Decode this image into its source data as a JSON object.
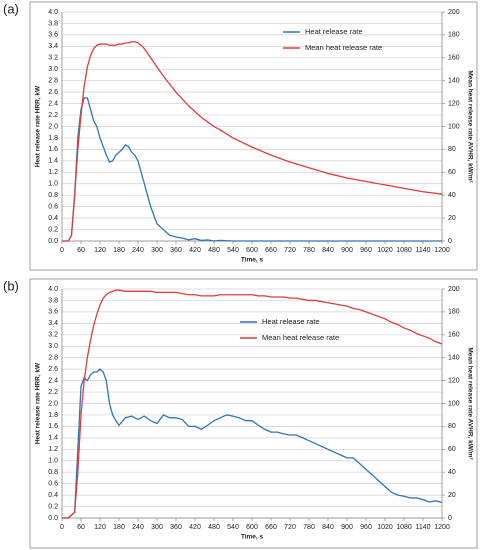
{
  "chart_data": [
    {
      "type": "line",
      "title": "(a)",
      "x_label": "Time, s",
      "y_label": "Heat release rate HRR, kW",
      "y2_label": "Mean heat release rate AVHR, kW/m²",
      "x": [
        0,
        20,
        30,
        40,
        50,
        60,
        70,
        80,
        90,
        100,
        110,
        120,
        130,
        140,
        150,
        160,
        170,
        180,
        190,
        200,
        210,
        220,
        230,
        240,
        250,
        260,
        270,
        280,
        290,
        300,
        320,
        340,
        360,
        380,
        400,
        420,
        440,
        460,
        480,
        500,
        540,
        600,
        660,
        720,
        780,
        840,
        900,
        960,
        1020,
        1080,
        1140,
        1200
      ],
      "series": [
        {
          "name": "Heat release rate",
          "color": "#2e75b6",
          "values": [
            0,
            0,
            0.1,
            0.8,
            1.8,
            2.3,
            2.5,
            2.5,
            2.3,
            2.1,
            2.0,
            1.8,
            1.65,
            1.5,
            1.38,
            1.4,
            1.5,
            1.55,
            1.6,
            1.68,
            1.65,
            1.55,
            1.5,
            1.4,
            1.2,
            1.0,
            0.8,
            0.6,
            0.45,
            0.3,
            0.2,
            0.1,
            0.07,
            0.05,
            0.02,
            0.04,
            0.01,
            0.02,
            0,
            0.01,
            0,
            0,
            0,
            0,
            0,
            0,
            0,
            0,
            0,
            0,
            0,
            0
          ]
        },
        {
          "name": "Mean heat release rate",
          "color": "#e03c3c",
          "axis": "y2",
          "values": [
            0,
            0,
            5,
            40,
            80,
            110,
            135,
            152,
            162,
            168,
            171,
            172,
            172,
            172,
            171,
            171,
            171,
            172,
            172,
            173,
            173,
            174,
            174,
            173,
            171,
            168,
            164,
            160,
            156,
            152,
            144,
            137,
            130,
            124,
            118,
            113,
            108,
            104,
            100,
            97,
            90,
            82,
            75,
            69,
            64,
            59,
            55,
            52,
            49,
            46,
            43,
            41
          ]
        }
      ],
      "xlim": [
        0,
        1200
      ],
      "xticks": [
        0,
        60,
        120,
        180,
        240,
        300,
        360,
        420,
        480,
        540,
        600,
        660,
        720,
        780,
        840,
        900,
        960,
        1020,
        1080,
        1140,
        1200
      ],
      "ylim": [
        0,
        4
      ],
      "yticks": [
        {
          "value": 0,
          "label": "0.0"
        },
        0.2,
        0.4,
        0.6,
        0.8,
        {
          "value": 1,
          "label": "1.0"
        },
        1.2,
        1.4,
        1.6,
        1.8,
        {
          "value": 2,
          "label": "2.0"
        },
        2.2,
        2.4,
        2.6,
        2.8,
        {
          "value": 3,
          "label": "3.0"
        },
        3.2,
        3.4,
        3.6,
        3.8,
        {
          "value": 4,
          "label": "4.0"
        }
      ],
      "y2lim": [
        0,
        200
      ],
      "y2ticks": [
        0,
        20,
        40,
        60,
        80,
        100,
        120,
        140,
        160,
        180,
        200
      ],
      "grid": true
    },
    {
      "type": "line",
      "title": "(b)",
      "x_label": "Time, s",
      "y_label": "Heat release rate HRR, kW",
      "y2_label": "Mean heat release rate AVHR, kW/m²",
      "x": [
        0,
        20,
        40,
        50,
        60,
        70,
        80,
        90,
        100,
        110,
        120,
        130,
        140,
        150,
        160,
        170,
        180,
        200,
        220,
        240,
        260,
        280,
        300,
        320,
        340,
        360,
        380,
        400,
        420,
        440,
        460,
        480,
        500,
        520,
        540,
        560,
        580,
        600,
        620,
        640,
        660,
        680,
        700,
        720,
        740,
        760,
        780,
        800,
        820,
        840,
        860,
        880,
        900,
        920,
        940,
        960,
        980,
        1000,
        1020,
        1040,
        1060,
        1080,
        1100,
        1120,
        1140,
        1160,
        1180,
        1200
      ],
      "series": [
        {
          "name": "Heat release rate",
          "color": "#2e75b6",
          "values": [
            0,
            0,
            0.1,
            1.2,
            2.3,
            2.45,
            2.4,
            2.5,
            2.55,
            2.55,
            2.6,
            2.55,
            2.4,
            2.0,
            1.8,
            1.7,
            1.62,
            1.75,
            1.78,
            1.72,
            1.78,
            1.7,
            1.65,
            1.8,
            1.75,
            1.75,
            1.72,
            1.6,
            1.6,
            1.55,
            1.62,
            1.7,
            1.75,
            1.8,
            1.78,
            1.75,
            1.7,
            1.7,
            1.62,
            1.55,
            1.5,
            1.5,
            1.47,
            1.45,
            1.45,
            1.4,
            1.35,
            1.3,
            1.25,
            1.2,
            1.15,
            1.1,
            1.05,
            1.05,
            0.95,
            0.85,
            0.75,
            0.65,
            0.55,
            0.45,
            0.4,
            0.38,
            0.35,
            0.35,
            0.32,
            0.28,
            0.3,
            0.27
          ]
        },
        {
          "name": "Mean heat release rate",
          "color": "#e03c3c",
          "axis": "y2",
          "values": [
            0,
            0,
            5,
            40,
            90,
            120,
            140,
            155,
            168,
            178,
            186,
            192,
            195,
            197,
            198,
            199,
            199,
            198,
            198,
            198,
            198,
            198,
            197,
            197,
            197,
            197,
            196,
            195,
            195,
            194,
            194,
            194,
            195,
            195,
            195,
            195,
            195,
            195,
            194,
            194,
            193,
            193,
            193,
            192,
            192,
            191,
            190,
            190,
            189,
            188,
            187,
            186,
            185,
            183,
            182,
            180,
            178,
            176,
            174,
            171,
            169,
            166,
            164,
            161,
            159,
            157,
            154,
            152
          ]
        }
      ],
      "xlim": [
        0,
        1200
      ],
      "xticks": [
        0,
        60,
        120,
        180,
        240,
        300,
        360,
        420,
        480,
        540,
        600,
        660,
        720,
        780,
        840,
        900,
        960,
        1020,
        1080,
        1140,
        1200
      ],
      "ylim": [
        0,
        4
      ],
      "yticks": [
        {
          "value": 0,
          "label": "0.0"
        },
        0.2,
        0.4,
        0.6,
        0.8,
        {
          "value": 1,
          "label": "1.0"
        },
        1.2,
        1.4,
        1.6,
        1.8,
        {
          "value": 2,
          "label": "2.0"
        },
        2.2,
        2.4,
        2.6,
        2.8,
        {
          "value": 3,
          "label": "3.0"
        },
        3.2,
        3.4,
        3.6,
        3.8,
        {
          "value": 4,
          "label": "4.0"
        }
      ],
      "y2lim": [
        0,
        200
      ],
      "y2ticks": [
        0,
        20,
        40,
        60,
        80,
        100,
        120,
        140,
        160,
        180,
        200
      ],
      "grid": true
    }
  ]
}
